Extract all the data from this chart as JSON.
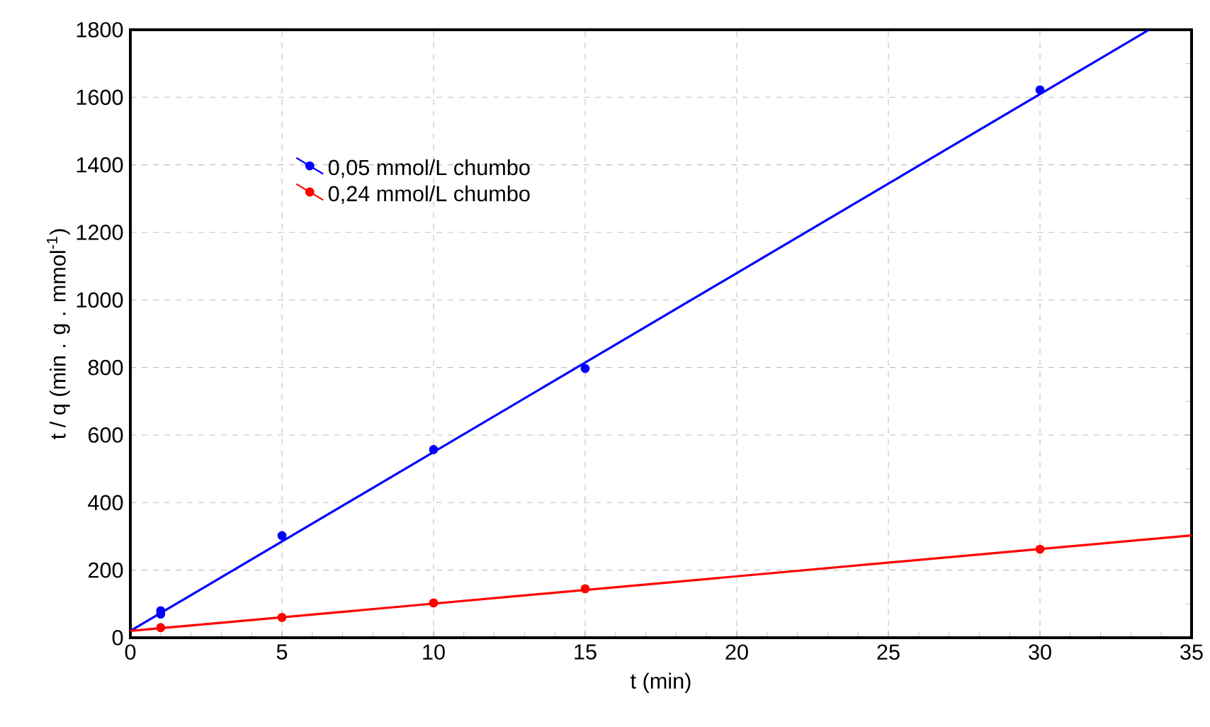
{
  "chart_data": {
    "type": "scatter",
    "xlabel": "t (min)",
    "ylabel": "t / q (min . g . mmol$^{-1}$)",
    "series": [
      {
        "name": "0,05 mmol/L chumbo",
        "color": "#0000ff",
        "x": [
          1,
          1,
          5,
          10,
          15,
          30
        ],
        "values": [
          70,
          80,
          302,
          557,
          797,
          1622
        ]
      },
      {
        "name": "0,24 mmol/L chumbo",
        "color": "#ff0000",
        "x": [
          1,
          5,
          10,
          15,
          30
        ],
        "values": [
          30,
          60,
          103,
          145,
          262
        ]
      },
      {
        "color": "#0000ff",
        "type": "line",
        "marker": "none",
        "x": [
          0,
          33.6
        ],
        "values": [
          20,
          1800
        ]
      },
      {
        "color": "#ff0000",
        "type": "line",
        "marker": "none",
        "x": [
          0,
          35
        ],
        "values": [
          20,
          303
        ]
      }
    ],
    "xlim": [
      0,
      35
    ],
    "ylim": [
      0,
      1800
    ],
    "xticks": [
      0,
      5,
      10,
      15,
      20,
      25,
      30,
      35
    ],
    "yticks": [
      0,
      200,
      400,
      600,
      800,
      1000,
      1200,
      1400,
      1600,
      1800
    ],
    "grid": true,
    "legend": "top left",
    "marker": "circle",
    "line_style": "solid"
  }
}
